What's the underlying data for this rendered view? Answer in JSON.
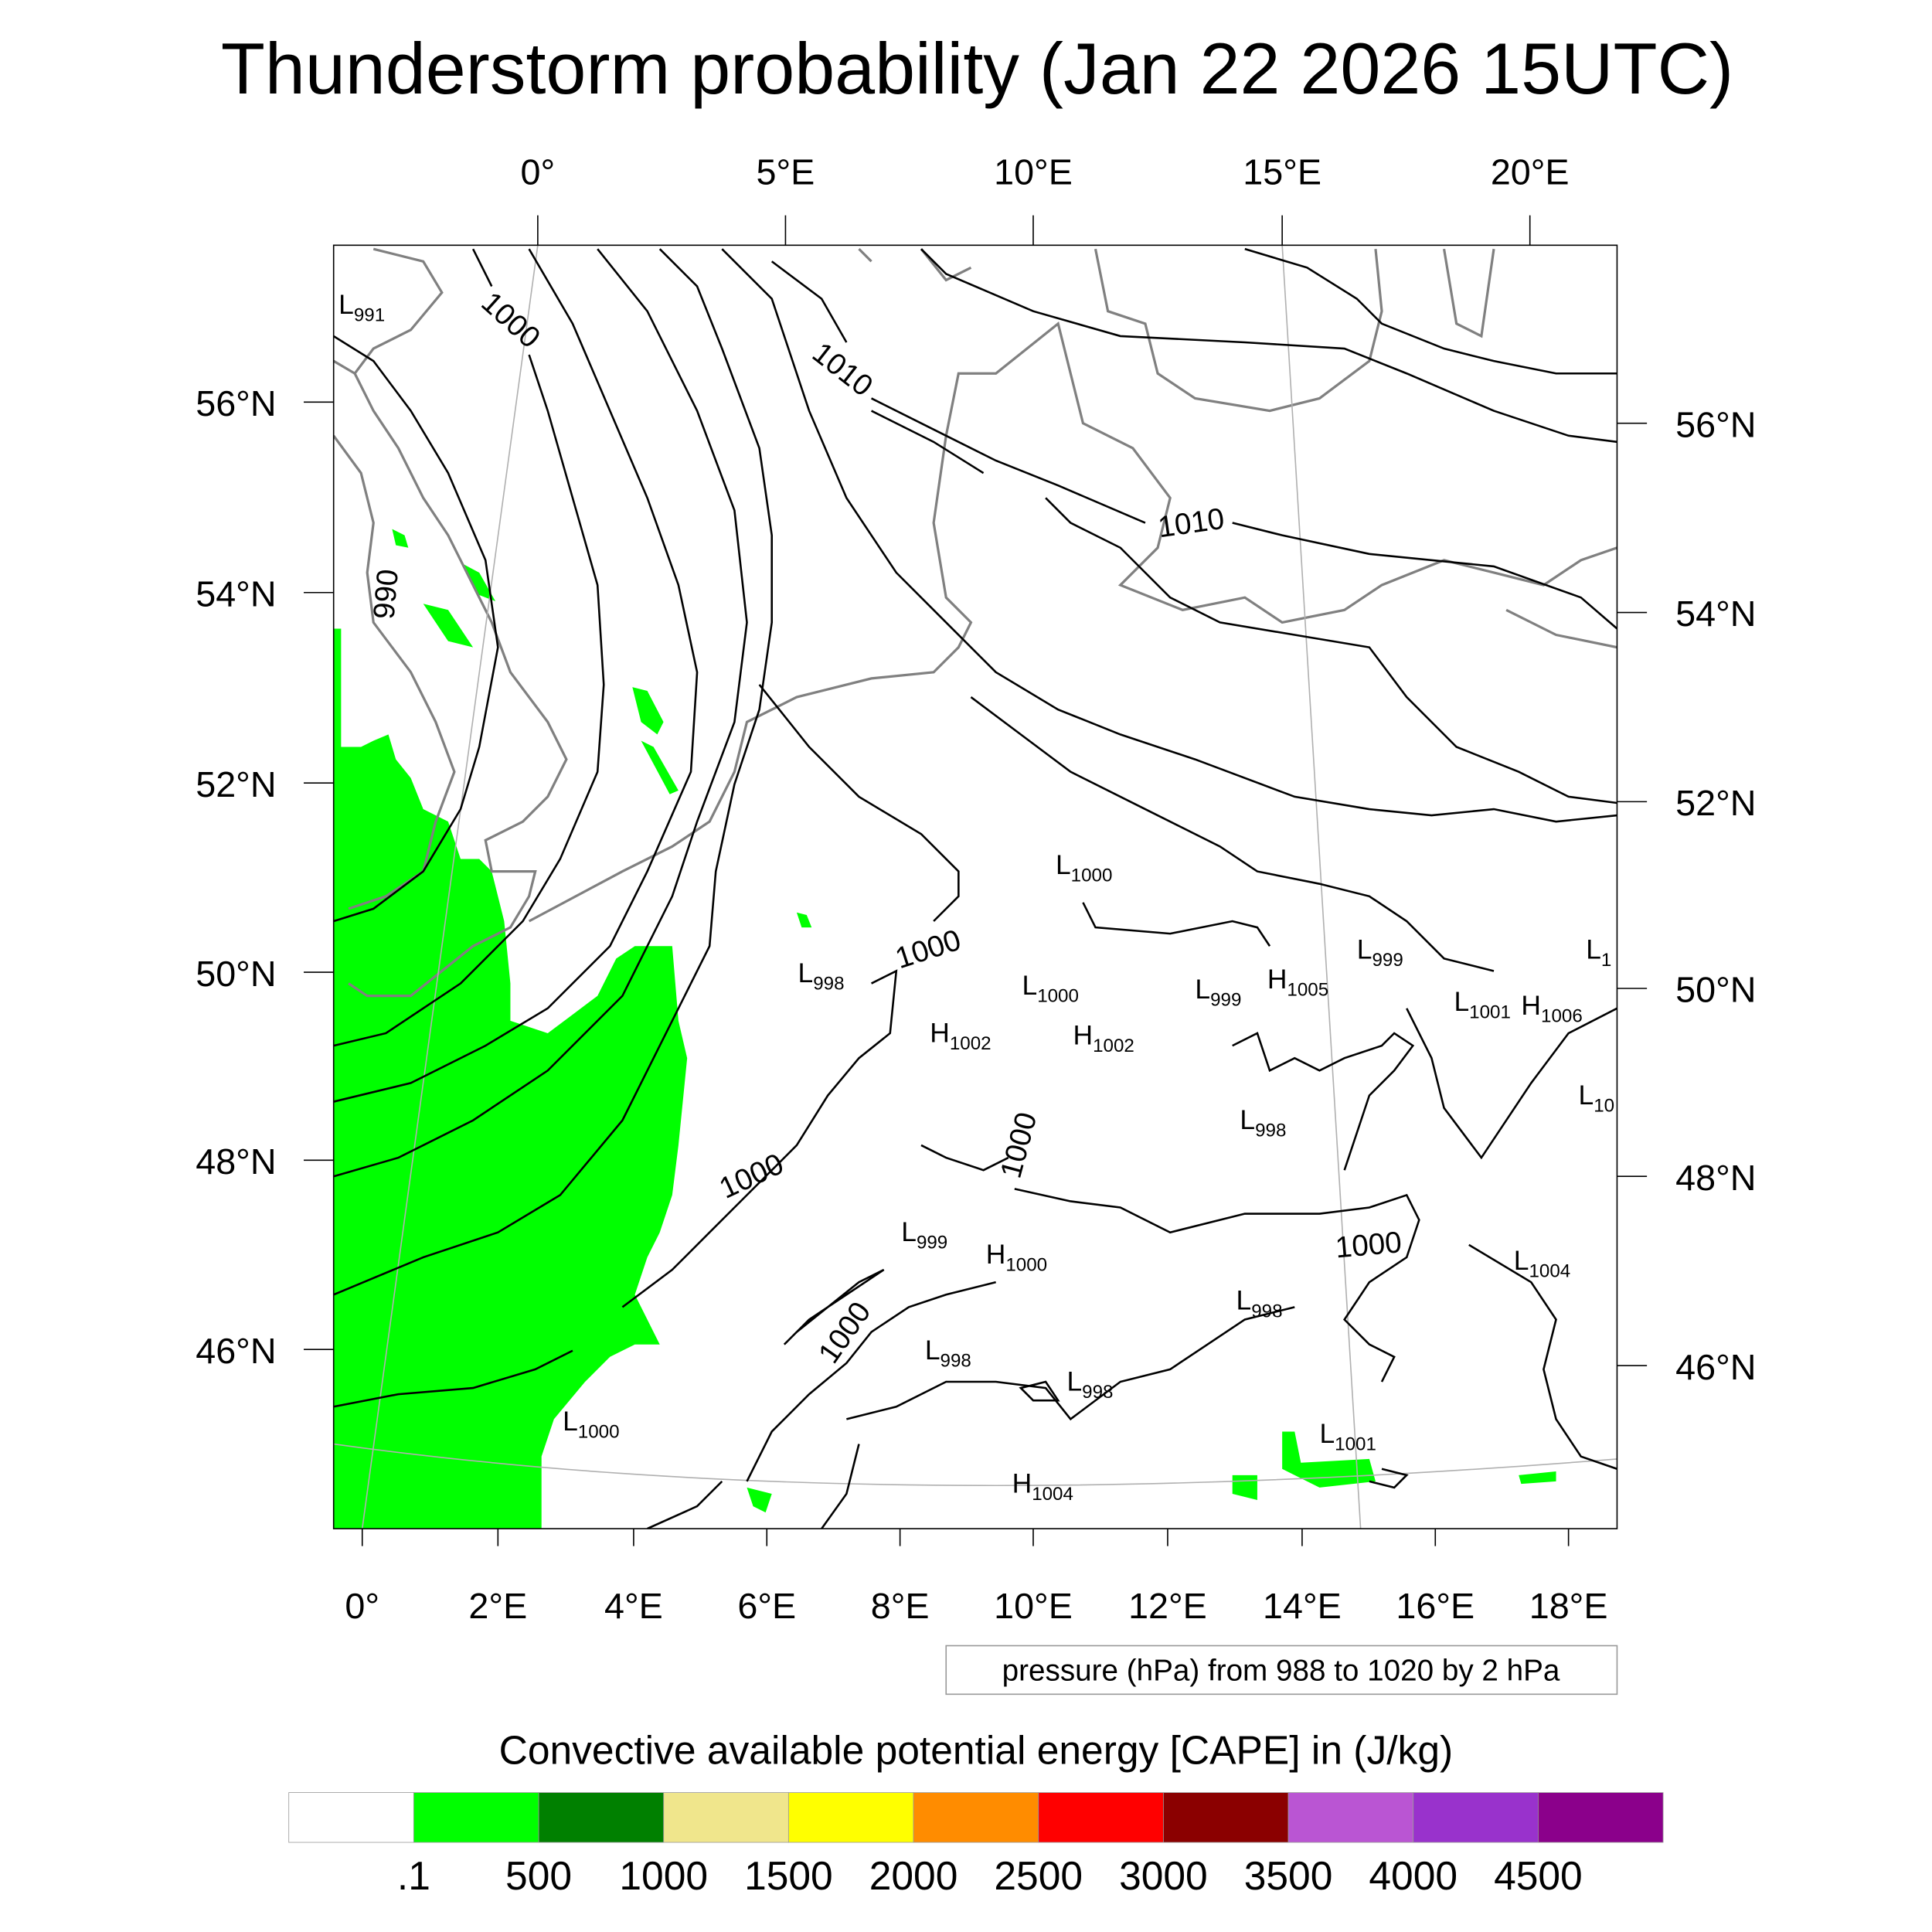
{
  "title": "Thunderstorm probability (Jan 22 2026 15UTC)",
  "axes": {
    "bottom_lon": [
      "0°",
      "2°E",
      "4°E",
      "6°E",
      "8°E",
      "10°E",
      "12°E",
      "14°E",
      "16°E",
      "18°E"
    ],
    "top_lon": [
      "0°",
      "5°E",
      "10°E",
      "15°E",
      "20°E"
    ],
    "left_lat": [
      "56°N",
      "54°N",
      "52°N",
      "50°N",
      "48°N",
      "46°N"
    ],
    "right_lat": [
      "56°N",
      "54°N",
      "52°N",
      "50°N",
      "48°N",
      "46°N"
    ]
  },
  "contour_info": "pressure (hPa) from 988 to 1020 by 2 hPa",
  "isobar_labels": [
    "1000",
    "1010",
    "990",
    "1010",
    "1000",
    "1000",
    "1000",
    "1000",
    "1000"
  ],
  "pressure_centers": [
    {
      "t": "L",
      "v": "991"
    },
    {
      "t": "L",
      "v": "1000"
    },
    {
      "t": "L",
      "v": "998"
    },
    {
      "t": "L",
      "v": "1000"
    },
    {
      "t": "H",
      "v": "1002"
    },
    {
      "t": "H",
      "v": "1002"
    },
    {
      "t": "L",
      "v": "999"
    },
    {
      "t": "H",
      "v": "1005"
    },
    {
      "t": "L",
      "v": "999"
    },
    {
      "t": "L",
      "v": "1"
    },
    {
      "t": "L",
      "v": "1001"
    },
    {
      "t": "H",
      "v": "1006"
    },
    {
      "t": "L",
      "v": "10"
    },
    {
      "t": "L",
      "v": "998"
    },
    {
      "t": "L",
      "v": "999"
    },
    {
      "t": "H",
      "v": "1000"
    },
    {
      "t": "L",
      "v": "1004"
    },
    {
      "t": "L",
      "v": "998"
    },
    {
      "t": "L",
      "v": "998"
    },
    {
      "t": "L",
      "v": "998"
    },
    {
      "t": "L",
      "v": "1000"
    },
    {
      "t": "L",
      "v": "1001"
    },
    {
      "t": "H",
      "v": "1004"
    }
  ],
  "colorbar": {
    "title": "Convective available potential energy [CAPE] in (J/kg)",
    "colors": [
      "#ffffff",
      "#00ff00",
      "#008000",
      "#f0e68c",
      "#ffff00",
      "#ff8c00",
      "#ff0000",
      "#8b0000",
      "#ba55d3",
      "#9932cc",
      "#8b008b"
    ],
    "labels": [
      ".1",
      "500",
      "1000",
      "1500",
      "2000",
      "2500",
      "3000",
      "3500",
      "4000",
      "4500"
    ]
  }
}
